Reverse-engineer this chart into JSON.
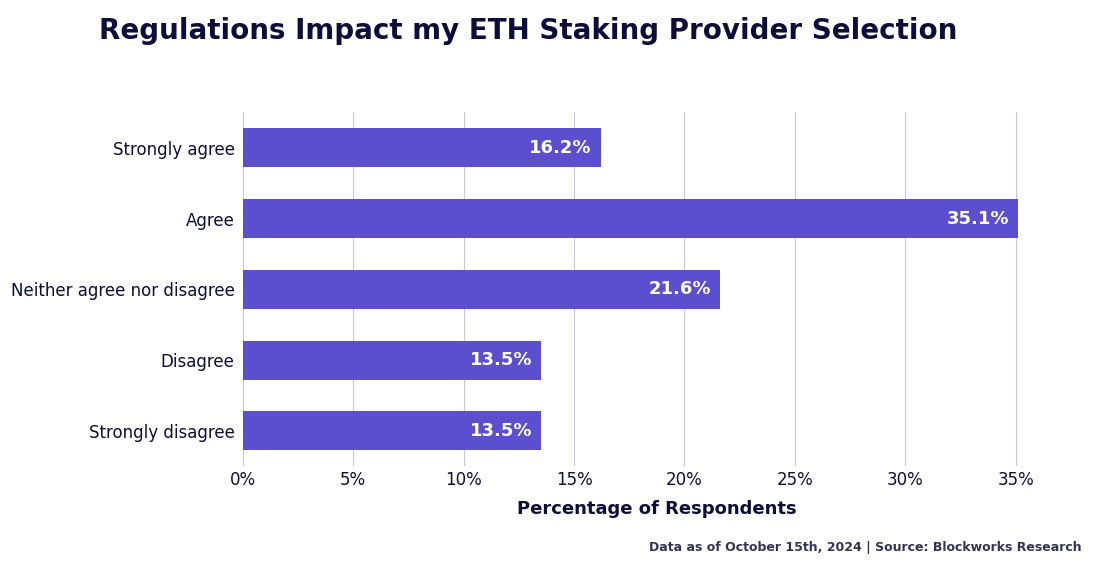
{
  "title": "Regulations Impact my ETH Staking Provider Selection",
  "categories": [
    "Strongly agree",
    "Agree",
    "Neither agree nor disagree",
    "Disagree",
    "Strongly disagree"
  ],
  "values": [
    16.2,
    35.1,
    21.6,
    13.5,
    13.5
  ],
  "bar_color": "#5B4FCF",
  "label_color": "#FFFFFF",
  "title_color": "#0d0d3b",
  "xlabel": "Percentage of Respondents",
  "xtick_labels": [
    "0%",
    "5%",
    "10%",
    "15%",
    "20%",
    "25%",
    "30%",
    "35%"
  ],
  "xtick_values": [
    0,
    5,
    10,
    15,
    20,
    25,
    30,
    35
  ],
  "xlim": [
    0,
    37.5
  ],
  "footer": "Data as of October 15th, 2024 | Source: Blockworks Research",
  "background_color": "#FFFFFF",
  "grid_color": "#C8C8D0",
  "title_fontsize": 20,
  "label_fontsize": 13,
  "axis_label_fontsize": 13,
  "tick_fontsize": 12,
  "footer_fontsize": 9,
  "bar_height": 0.55
}
